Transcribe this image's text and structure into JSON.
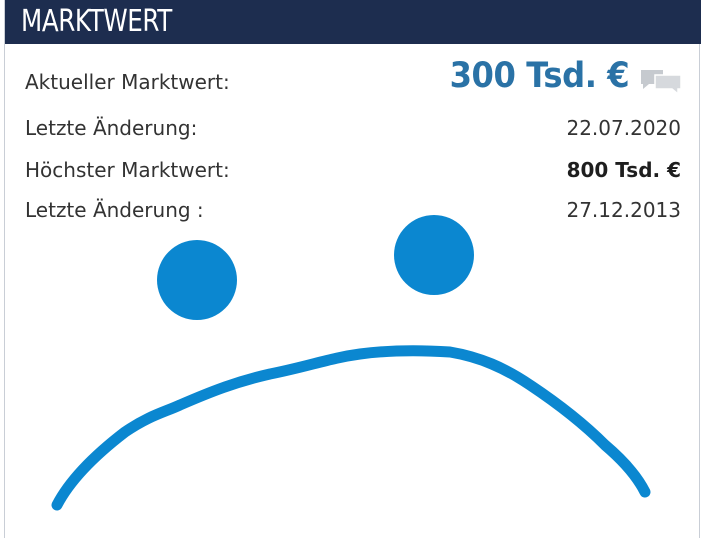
{
  "header": {
    "title": "MARKTWERT"
  },
  "market_value": {
    "current_label": "Aktueller Marktwert:",
    "current_value": "300 Tsd. €",
    "last_change_label": "Letzte Änderung:",
    "last_change_value": "22.07.2020",
    "highest_label": "Höchster Marktwert:",
    "highest_value": "800 Tsd. €",
    "highest_change_label": "Letzte Änderung :",
    "highest_change_value": "27.12.2013"
  },
  "icons": {
    "comments": "comments-icon"
  },
  "drawing": {
    "description_color": "#0b87d0",
    "shape": "sad-face"
  },
  "colors": {
    "header_bg": "#1d2d4f",
    "value_blue": "#2a72a6",
    "drawing_blue": "#0b87d0"
  }
}
